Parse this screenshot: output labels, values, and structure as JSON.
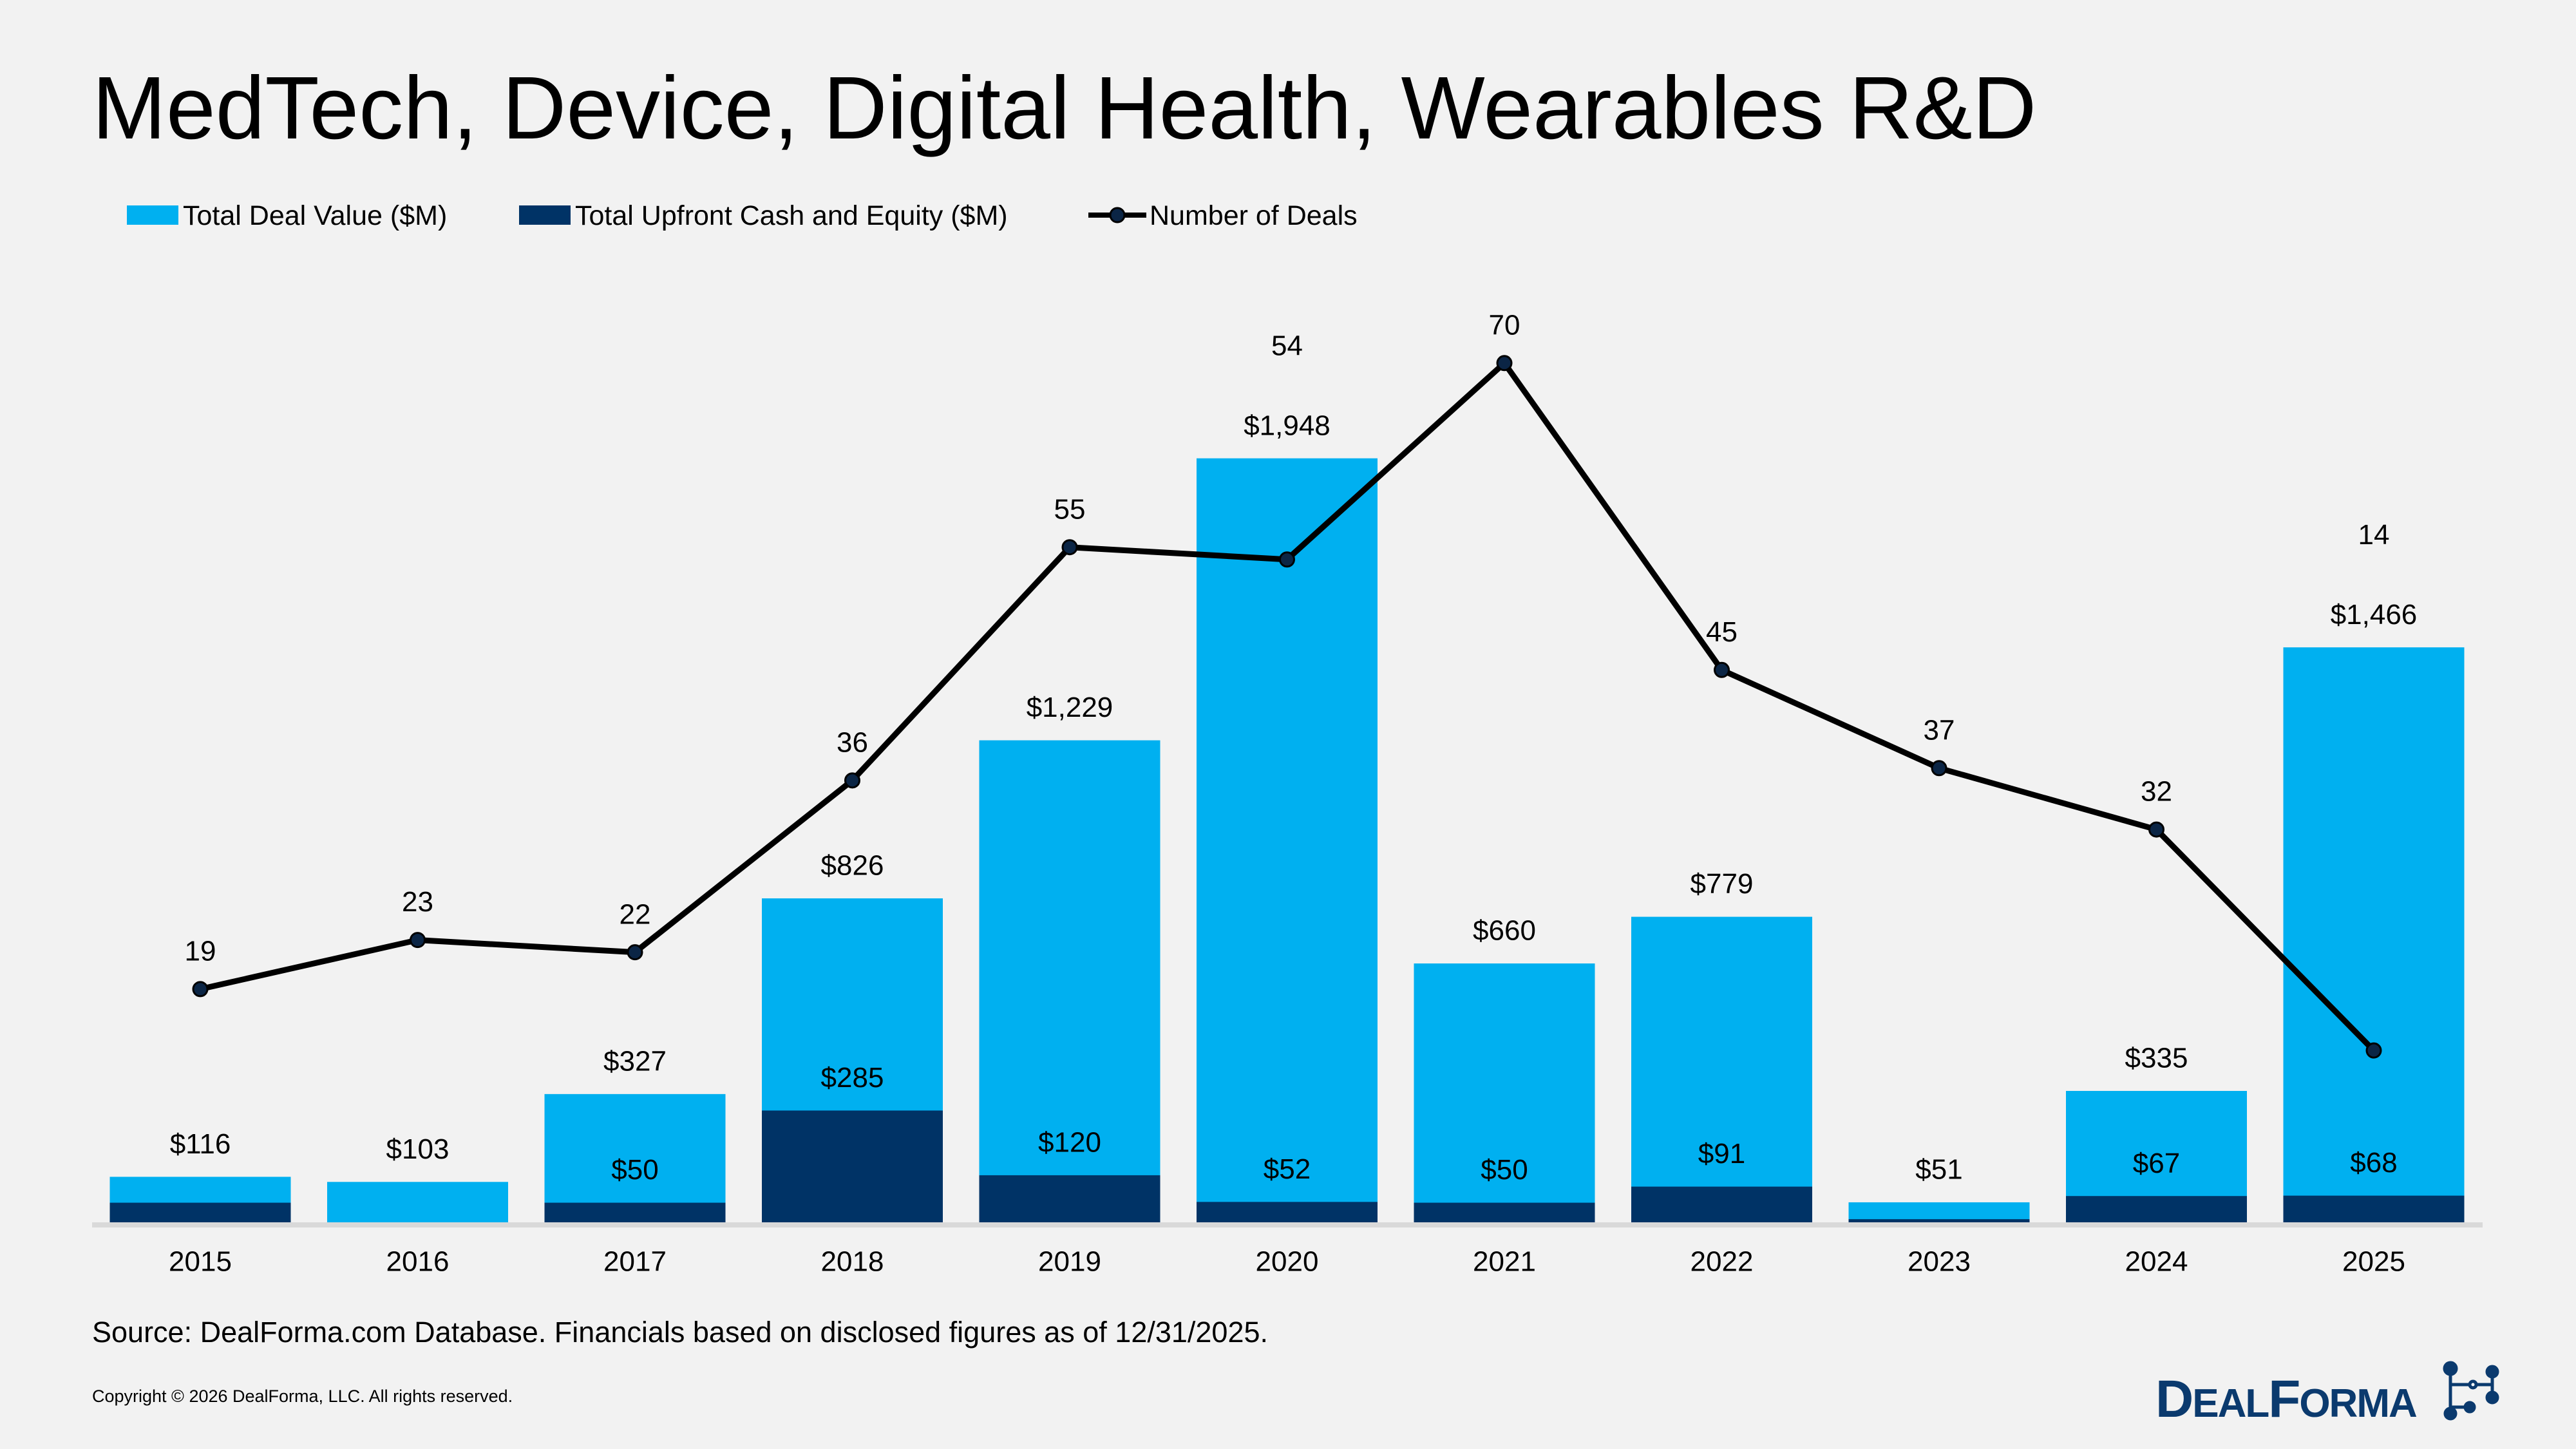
{
  "title": "MedTech, Device, Digital Health, Wearables R&D",
  "source": "Source: DealForma.com Database. Financials based on disclosed figures as of 12/31/2025.",
  "copyright": "Copyright © 2026 DealForma, LLC. All rights reserved.",
  "logo_text": "DealForma",
  "colors": {
    "background": "#F2F2F2",
    "total_deal_value": "#00B0F0",
    "upfront": "#003366",
    "deals_line": "#000000",
    "axis": "#D9D9D9"
  },
  "chart_data": {
    "type": "bar",
    "categories": [
      "2015",
      "2016",
      "2017",
      "2018",
      "2019",
      "2020",
      "2021",
      "2022",
      "2023",
      "2024",
      "2025"
    ],
    "legend": {
      "position": "top-left",
      "entries": [
        "Total Deal Value ($M)",
        "Total Upfront Cash and Equity ($M)",
        "Number of Deals"
      ]
    },
    "series": [
      {
        "name": "Total Deal Value ($M)",
        "type": "bar",
        "values": [
          116,
          103,
          327,
          826,
          1229,
          1948,
          660,
          779,
          51,
          335,
          1466
        ],
        "labels": [
          "$116",
          "$103",
          "$327",
          "$826",
          "$1,229",
          "$1,948",
          "$660",
          "$779",
          "$51",
          "$335",
          "$1,466"
        ]
      },
      {
        "name": "Total Upfront Cash and Equity ($M)",
        "type": "bar",
        "values": [
          50,
          0,
          50,
          285,
          120,
          52,
          50,
          91,
          8,
          67,
          68
        ],
        "labels": [
          "",
          "",
          "$50",
          "$285",
          "$120",
          "$52",
          "$50",
          "$91",
          "",
          "$67",
          "$68"
        ]
      },
      {
        "name": "Number of Deals",
        "type": "line",
        "axis": "secondary",
        "values": [
          19,
          23,
          22,
          36,
          55,
          54,
          70,
          45,
          37,
          32,
          14
        ],
        "labels": [
          "19",
          "23",
          "22",
          "36",
          "55",
          "54",
          "70",
          "45",
          "37",
          "32",
          "14"
        ]
      }
    ],
    "grid": false,
    "y_axis_visible": false
  }
}
